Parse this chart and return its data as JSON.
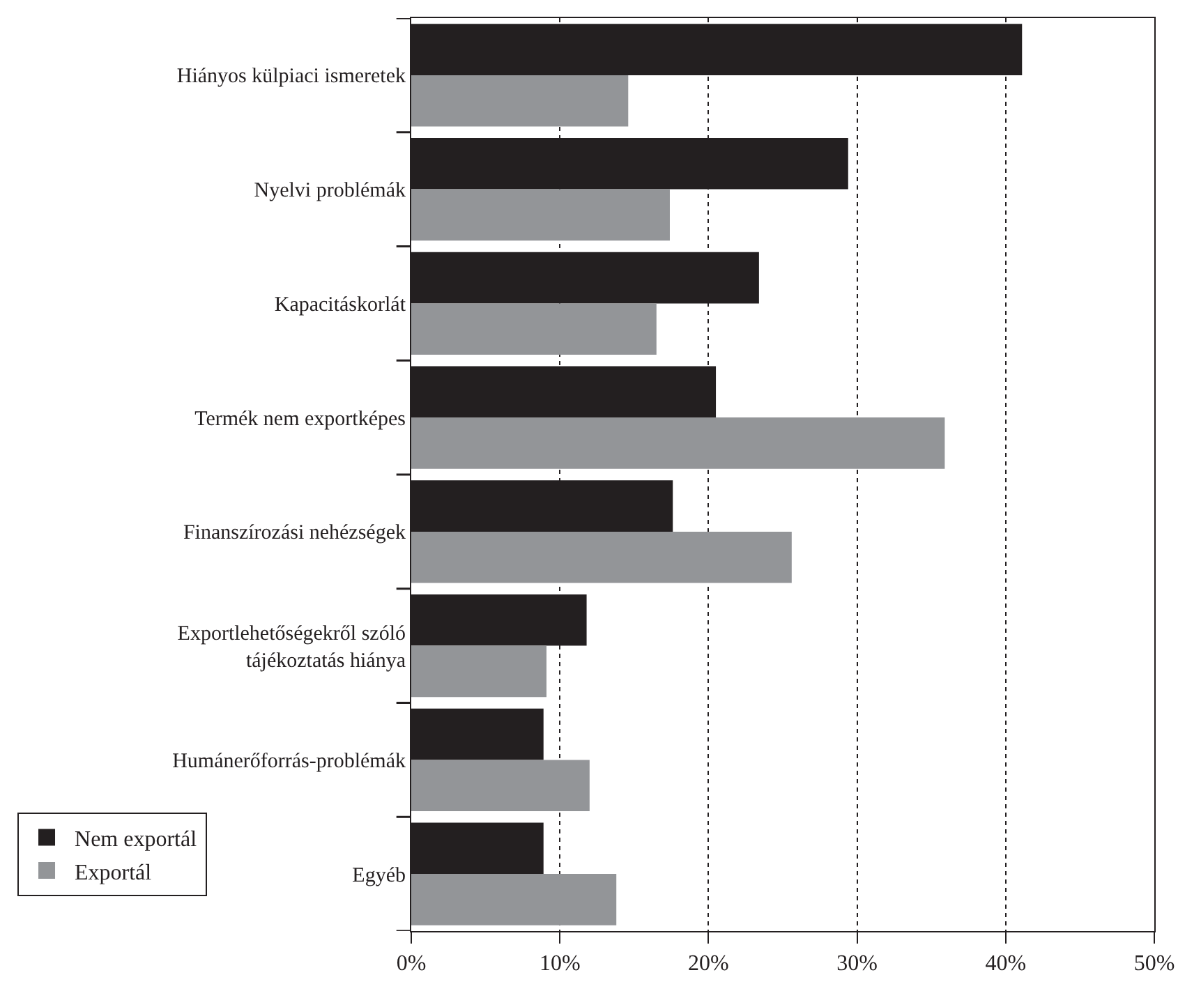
{
  "chart_data": {
    "type": "bar",
    "orientation": "horizontal",
    "categories": [
      "Hiányos külpiaci ismeretek",
      "Nyelvi problémák",
      "Kapacitáskorlát",
      "Termék nem exportképes",
      "Finanszírozási nehézségek",
      "Exportlehetőségekről szóló tájékoztatás hiánya",
      "Humánerőforrás-problémák",
      "Egyéb"
    ],
    "series": [
      {
        "name": "Nem exportál",
        "color": "#231f20",
        "values": [
          41.1,
          29.4,
          23.4,
          20.5,
          17.6,
          11.8,
          8.9,
          8.9
        ]
      },
      {
        "name": "Exportál",
        "color": "#939598",
        "values": [
          14.6,
          17.4,
          16.5,
          35.9,
          25.6,
          9.1,
          12.0,
          13.8
        ]
      }
    ],
    "xlim": [
      0,
      50
    ],
    "xticks": [
      {
        "value": 0,
        "label": "0%"
      },
      {
        "value": 10,
        "label": "10%"
      },
      {
        "value": 20,
        "label": "20%"
      },
      {
        "value": 30,
        "label": "30%"
      },
      {
        "value": 40,
        "label": "40%"
      },
      {
        "value": 50,
        "label": "50%"
      }
    ],
    "grid": "x",
    "legend": "bottom left"
  }
}
